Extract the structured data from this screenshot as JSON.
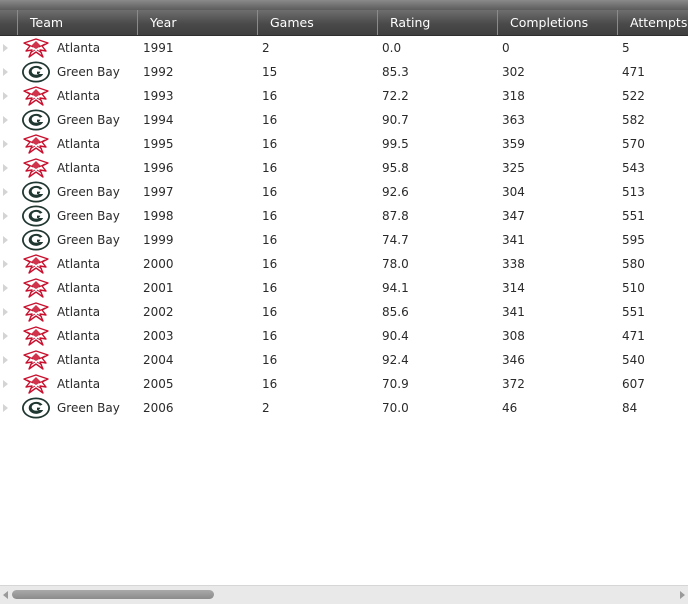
{
  "grid": {
    "columns": [
      "Team",
      "Year",
      "Games",
      "Rating",
      "Completions",
      "Attempts"
    ],
    "rows": [
      {
        "team": "Atlanta",
        "logo": "falcons-logo",
        "year": "1991",
        "games": "2",
        "rating": "0.0",
        "completions": "0",
        "attempts": "5"
      },
      {
        "team": "Green Bay",
        "logo": "packers-logo",
        "year": "1992",
        "games": "15",
        "rating": "85.3",
        "completions": "302",
        "attempts": "471"
      },
      {
        "team": "Atlanta",
        "logo": "falcons-logo",
        "year": "1993",
        "games": "16",
        "rating": "72.2",
        "completions": "318",
        "attempts": "522"
      },
      {
        "team": "Green Bay",
        "logo": "packers-logo",
        "year": "1994",
        "games": "16",
        "rating": "90.7",
        "completions": "363",
        "attempts": "582"
      },
      {
        "team": "Atlanta",
        "logo": "falcons-logo",
        "year": "1995",
        "games": "16",
        "rating": "99.5",
        "completions": "359",
        "attempts": "570"
      },
      {
        "team": "Atlanta",
        "logo": "falcons-logo",
        "year": "1996",
        "games": "16",
        "rating": "95.8",
        "completions": "325",
        "attempts": "543"
      },
      {
        "team": "Green Bay",
        "logo": "packers-logo",
        "year": "1997",
        "games": "16",
        "rating": "92.6",
        "completions": "304",
        "attempts": "513"
      },
      {
        "team": "Green Bay",
        "logo": "packers-logo",
        "year": "1998",
        "games": "16",
        "rating": "87.8",
        "completions": "347",
        "attempts": "551"
      },
      {
        "team": "Green Bay",
        "logo": "packers-logo",
        "year": "1999",
        "games": "16",
        "rating": "74.7",
        "completions": "341",
        "attempts": "595"
      },
      {
        "team": "Atlanta",
        "logo": "falcons-logo",
        "year": "2000",
        "games": "16",
        "rating": "78.0",
        "completions": "338",
        "attempts": "580"
      },
      {
        "team": "Atlanta",
        "logo": "falcons-logo",
        "year": "2001",
        "games": "16",
        "rating": "94.1",
        "completions": "314",
        "attempts": "510"
      },
      {
        "team": "Atlanta",
        "logo": "falcons-logo",
        "year": "2002",
        "games": "16",
        "rating": "85.6",
        "completions": "341",
        "attempts": "551"
      },
      {
        "team": "Atlanta",
        "logo": "falcons-logo",
        "year": "2003",
        "games": "16",
        "rating": "90.4",
        "completions": "308",
        "attempts": "471"
      },
      {
        "team": "Atlanta",
        "logo": "falcons-logo",
        "year": "2004",
        "games": "16",
        "rating": "92.4",
        "completions": "346",
        "attempts": "540"
      },
      {
        "team": "Atlanta",
        "logo": "falcons-logo",
        "year": "2005",
        "games": "16",
        "rating": "70.9",
        "completions": "372",
        "attempts": "607"
      },
      {
        "team": "Green Bay",
        "logo": "packers-logo",
        "year": "2006",
        "games": "2",
        "rating": "70.0",
        "completions": "46",
        "attempts": "84"
      }
    ]
  },
  "colors": {
    "header_bg": "#4a4a4a",
    "falcons_red": "#c8102e",
    "packers_green": "#203731",
    "packers_gold": "#ffb612"
  },
  "scrollbar": {
    "position": 0,
    "thumb_fraction": 0.3
  }
}
